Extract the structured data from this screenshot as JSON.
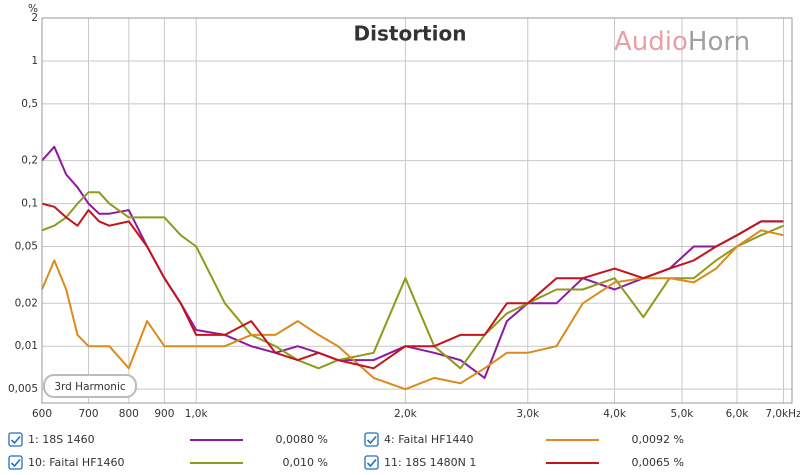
{
  "chart_data": {
    "type": "line",
    "title": "Distortion",
    "y_label": "%",
    "annotation": "3rd Harmonic",
    "watermark_parts": [
      "Audio",
      "Horn"
    ],
    "watermark_colors": [
      "#e8a0a8",
      "#a0a0a0"
    ],
    "log_x": true,
    "log_y": true,
    "grid": true,
    "xlim": [
      600,
      7200
    ],
    "ylim": [
      0.004,
      2
    ],
    "xticks": [
      600,
      700,
      800,
      900,
      {
        "value": 1000,
        "label": "1,0k"
      },
      {
        "value": 2000,
        "label": "2,0k"
      },
      {
        "value": 3000,
        "label": "3,0k"
      },
      {
        "value": 4000,
        "label": "4,0k"
      },
      {
        "value": 5000,
        "label": "5,0k"
      },
      {
        "value": 6000,
        "label": "6,0k"
      },
      {
        "value": 7000,
        "label": "7,0kHz"
      }
    ],
    "yticks": [
      2,
      1,
      {
        "value": 0.5,
        "label": "0,5"
      },
      {
        "value": 0.2,
        "label": "0,2"
      },
      {
        "value": 0.1,
        "label": "0,1"
      },
      {
        "value": 0.05,
        "label": "0,05"
      },
      {
        "value": 0.02,
        "label": "0,02"
      },
      {
        "value": 0.01,
        "label": "0,01"
      },
      {
        "value": 0.005,
        "label": "0,005"
      }
    ],
    "x": [
      600,
      625,
      650,
      675,
      700,
      725,
      750,
      800,
      850,
      900,
      950,
      1000,
      1100,
      1200,
      1300,
      1400,
      1500,
      1600,
      1800,
      2000,
      2200,
      2400,
      2600,
      2800,
      3000,
      3300,
      3600,
      4000,
      4400,
      4800,
      5200,
      5600,
      6000,
      6500,
      7000
    ],
    "series": [
      {
        "name": "1: 18S 1460",
        "color": "#8e1a9e",
        "readout": "0,0080 %",
        "values": [
          0.2,
          0.25,
          0.16,
          0.13,
          0.1,
          0.085,
          0.085,
          0.09,
          0.05,
          0.03,
          0.02,
          0.013,
          0.012,
          0.01,
          0.009,
          0.01,
          0.009,
          0.008,
          0.008,
          0.01,
          0.009,
          0.008,
          0.006,
          0.015,
          0.02,
          0.02,
          0.03,
          0.025,
          0.03,
          0.035,
          0.05,
          0.05,
          0.06,
          0.075,
          0.075
        ]
      },
      {
        "name": "10: Faital HF1460",
        "color": "#8f9a1c",
        "readout": "0,010 %",
        "values": [
          0.065,
          0.07,
          0.08,
          0.1,
          0.12,
          0.12,
          0.1,
          0.08,
          0.08,
          0.08,
          0.06,
          0.05,
          0.02,
          0.012,
          0.01,
          0.008,
          0.007,
          0.008,
          0.009,
          0.03,
          0.01,
          0.007,
          0.012,
          0.017,
          0.02,
          0.025,
          0.025,
          0.03,
          0.016,
          0.03,
          0.03,
          0.04,
          0.05,
          0.06,
          0.07
        ]
      },
      {
        "name": "4: Faital HF1440",
        "color": "#d98b1e",
        "readout": "0,0092 %",
        "values": [
          0.025,
          0.04,
          0.025,
          0.012,
          0.01,
          0.01,
          0.01,
          0.007,
          0.015,
          0.01,
          0.01,
          0.01,
          0.01,
          0.012,
          0.012,
          0.015,
          0.012,
          0.01,
          0.006,
          0.005,
          0.006,
          0.0055,
          0.007,
          0.009,
          0.009,
          0.01,
          0.02,
          0.028,
          0.03,
          0.03,
          0.028,
          0.035,
          0.05,
          0.065,
          0.06
        ]
      },
      {
        "name": "11: 18S 1480N 1",
        "color": "#c3141e",
        "readout": "0,0065 %",
        "values": [
          0.1,
          0.095,
          0.08,
          0.07,
          0.09,
          0.075,
          0.07,
          0.075,
          0.05,
          0.03,
          0.02,
          0.012,
          0.012,
          0.015,
          0.009,
          0.008,
          0.009,
          0.008,
          0.007,
          0.01,
          0.01,
          0.012,
          0.012,
          0.02,
          0.02,
          0.03,
          0.03,
          0.035,
          0.03,
          0.035,
          0.04,
          0.05,
          0.06,
          0.075,
          0.075
        ]
      }
    ]
  }
}
